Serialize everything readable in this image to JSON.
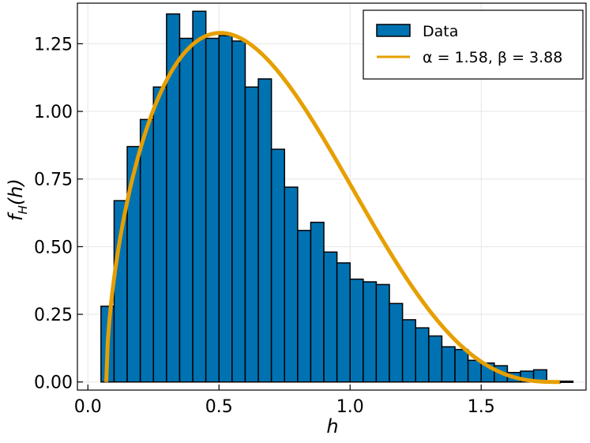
{
  "chart_data": {
    "type": "bar",
    "xlabel": "h",
    "ylabel": "f_H(h)",
    "xlim": [
      -0.04,
      1.9
    ],
    "ylim": [
      -0.03,
      1.4
    ],
    "grid": true,
    "legend_position": "top-right",
    "x_ticks": [
      0.0,
      0.5,
      1.0,
      1.5
    ],
    "x_tick_labels": [
      "0.0",
      "0.5",
      "1.0",
      "1.5"
    ],
    "y_ticks": [
      0.0,
      0.25,
      0.5,
      0.75,
      1.0,
      1.25
    ],
    "y_tick_labels": [
      "0.00",
      "0.25",
      "0.50",
      "0.75",
      "1.00",
      "1.25"
    ],
    "histogram": {
      "name": "Data",
      "color": "#0072B2",
      "bin_width": 0.05,
      "bin_edges_start": 0.05,
      "values": [
        0.28,
        0.67,
        0.87,
        0.97,
        1.09,
        1.36,
        1.27,
        1.37,
        1.27,
        1.28,
        1.26,
        1.09,
        1.12,
        0.86,
        0.72,
        0.56,
        0.59,
        0.48,
        0.44,
        0.38,
        0.37,
        0.36,
        0.29,
        0.23,
        0.2,
        0.17,
        0.13,
        0.12,
        0.08,
        0.07,
        0.06,
        0.035,
        0.04,
        0.045,
        0.0,
        0.003
      ]
    },
    "curve": {
      "name": "α = 1.58, β = 3.88",
      "color": "#E69F00",
      "type": "line",
      "x_start": 0.07,
      "x_end": 1.8,
      "alpha": 1.58,
      "beta": 3.88,
      "peak": [
        0.37,
        1.29
      ]
    }
  },
  "legend": {
    "items": [
      {
        "label": "Data",
        "kind": "bar"
      },
      {
        "label": "α = 1.58, β = 3.88",
        "kind": "line"
      }
    ]
  }
}
